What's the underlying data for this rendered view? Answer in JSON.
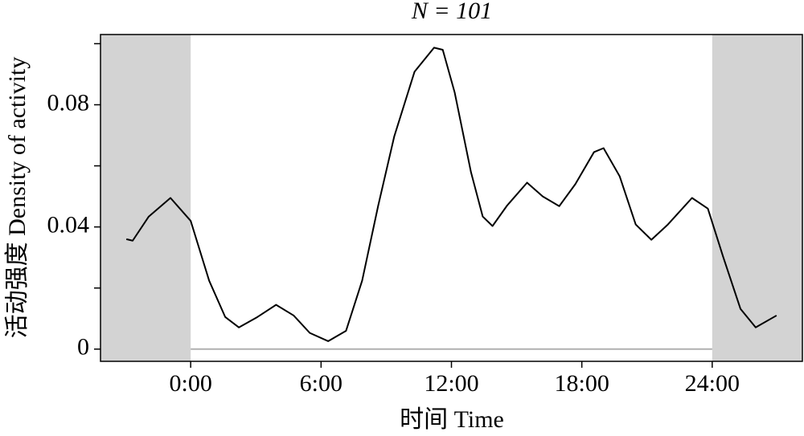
{
  "chart_data": {
    "type": "line",
    "title": "N = 101",
    "x_label": "时间 Time",
    "y_label": "活动强度 Density of activity",
    "x": [
      -2.96,
      -2.67,
      -1.93,
      -0.93,
      0,
      0.85,
      1.59,
      2.22,
      3.07,
      3.93,
      4.74,
      5.48,
      6.33,
      7.15,
      7.89,
      8.63,
      9.37,
      10.3,
      11.2,
      11.6,
      12.15,
      12.9,
      13.44,
      13.89,
      14.56,
      15.48,
      16.2,
      16.96,
      17.7,
      18.56,
      19,
      19.74,
      20.48,
      21.2,
      21.96,
      23.07,
      23.8,
      24.5,
      25.3,
      26,
      26.96
    ],
    "values": [
      0.036,
      0.0355,
      0.0434,
      0.0495,
      0.042,
      0.0224,
      0.0105,
      0.0071,
      0.0105,
      0.0145,
      0.011,
      0.0053,
      0.0026,
      0.006,
      0.0224,
      0.047,
      0.0697,
      0.0908,
      0.0987,
      0.098,
      0.084,
      0.0579,
      0.0434,
      0.0403,
      0.047,
      0.0545,
      0.05,
      0.0468,
      0.054,
      0.0645,
      0.0658,
      0.0566,
      0.0408,
      0.0358,
      0.0408,
      0.0495,
      0.046,
      0.0303,
      0.0132,
      0.0071,
      0.011
    ],
    "color": "#000000",
    "xlim": [
      -4.15,
      28.15
    ],
    "xticks": [
      {
        "value": 0,
        "label": "0:00"
      },
      {
        "value": 6,
        "label": "6:00"
      },
      {
        "value": 12,
        "label": "12:00"
      },
      {
        "value": 18,
        "label": "18:00"
      },
      {
        "value": 24,
        "label": "24:00"
      }
    ],
    "ylim": [
      -0.004,
      0.103
    ],
    "yticks": [
      0,
      0.04,
      0.08
    ],
    "yminor_ticks": [
      0.02,
      0.06,
      0.1
    ],
    "shaded": [
      [
        -4.15,
        0
      ],
      [
        24,
        28.15
      ]
    ],
    "shade_color": "#d3d3d3",
    "baseline_color": "#b0b0b0"
  }
}
